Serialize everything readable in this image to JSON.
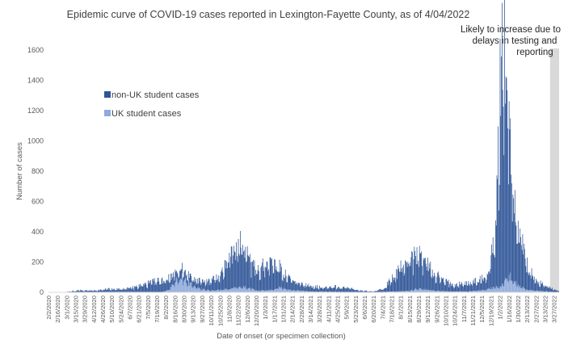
{
  "chart_data": {
    "type": "bar",
    "stacked": true,
    "title": "Epidemic curve of COVID-19 cases reported in Lexington-Fayette County, as of 4/04/2022",
    "xlabel": "Date of onset (or specimen collection)",
    "ylabel": "Number of cases",
    "ylim": [
      0,
      1600
    ],
    "yticks": [
      0,
      200,
      400,
      600,
      800,
      1000,
      1200,
      1400,
      1600
    ],
    "grid": false,
    "legend_position": "upper-left",
    "annotation": [
      "Likely to increase due to",
      "delays in testing and",
      "reporting"
    ],
    "x_start": "2/2/2020",
    "x_end": "4/3/2022",
    "x_step_days": 1,
    "x_tick_labels": [
      "2/2/2020",
      "2/16/2020",
      "3/1/2020",
      "3/15/2020",
      "3/29/2020",
      "4/12/2020",
      "4/26/2020",
      "5/10/2020",
      "5/24/2020",
      "6/7/2020",
      "6/21/2020",
      "7/5/2020",
      "7/19/2020",
      "8/2/2020",
      "8/16/2020",
      "8/30/2020",
      "9/13/2020",
      "9/27/2020",
      "10/11/2020",
      "10/25/2020",
      "11/8/2020",
      "11/22/2020",
      "12/6/2020",
      "12/20/2020",
      "1/3/2021",
      "1/17/2021",
      "1/31/2021",
      "2/14/2021",
      "2/28/2021",
      "3/14/2021",
      "3/28/2021",
      "4/11/2021",
      "4/25/2021",
      "5/9/2021",
      "5/23/2021",
      "6/6/2021",
      "6/20/2021",
      "7/4/2021",
      "7/18/2021",
      "8/1/2021",
      "8/15/2021",
      "8/29/2021",
      "9/12/2021",
      "9/26/2021",
      "10/10/2021",
      "10/24/2021",
      "11/7/2021",
      "11/21/2021",
      "12/5/2021",
      "12/19/2021",
      "1/2/2022",
      "1/16/2022",
      "1/30/2022",
      "2/13/2022",
      "2/27/2022",
      "3/13/2022",
      "3/27/2022"
    ],
    "shaded_region": {
      "from": "3/21/2022",
      "to": "4/3/2022"
    },
    "series": [
      {
        "name": "non-UK student cases",
        "color": "#2F5597",
        "key_points": [
          [
            "2/2/2020",
            0
          ],
          [
            "3/1/2020",
            3
          ],
          [
            "3/20/2020",
            12
          ],
          [
            "4/15/2020",
            10
          ],
          [
            "5/5/2020",
            22
          ],
          [
            "5/15/2020",
            18
          ],
          [
            "6/10/2020",
            28
          ],
          [
            "7/5/2020",
            55
          ],
          [
            "7/20/2020",
            70
          ],
          [
            "8/5/2020",
            75
          ],
          [
            "8/25/2020",
            50
          ],
          [
            "9/15/2020",
            45
          ],
          [
            "10/10/2020",
            60
          ],
          [
            "10/25/2020",
            95
          ],
          [
            "11/8/2020",
            190
          ],
          [
            "11/20/2020",
            260
          ],
          [
            "11/27/2020",
            300
          ],
          [
            "12/5/2020",
            240
          ],
          [
            "12/15/2020",
            140
          ],
          [
            "12/25/2020",
            140
          ],
          [
            "1/5/2021",
            165
          ],
          [
            "1/15/2021",
            170
          ],
          [
            "1/30/2021",
            100
          ],
          [
            "2/15/2021",
            55
          ],
          [
            "3/1/2021",
            40
          ],
          [
            "4/1/2021",
            28
          ],
          [
            "4/20/2021",
            32
          ],
          [
            "5/10/2021",
            25
          ],
          [
            "6/1/2021",
            10
          ],
          [
            "6/20/2021",
            4
          ],
          [
            "7/5/2021",
            20
          ],
          [
            "7/20/2021",
            85
          ],
          [
            "8/5/2021",
            170
          ],
          [
            "8/20/2021",
            210
          ],
          [
            "9/5/2021",
            190
          ],
          [
            "9/20/2021",
            120
          ],
          [
            "10/5/2021",
            65
          ],
          [
            "10/25/2021",
            45
          ],
          [
            "11/15/2021",
            52
          ],
          [
            "12/1/2021",
            65
          ],
          [
            "12/15/2021",
            95
          ],
          [
            "12/25/2021",
            330
          ],
          [
            "12/30/2021",
            830
          ],
          [
            "1/3/2022",
            1270
          ],
          [
            "1/8/2022",
            1290
          ],
          [
            "1/13/2022",
            1300
          ],
          [
            "1/18/2022",
            900
          ],
          [
            "1/25/2022",
            500
          ],
          [
            "2/5/2022",
            260
          ],
          [
            "2/15/2022",
            120
          ],
          [
            "3/1/2022",
            55
          ],
          [
            "3/15/2022",
            35
          ],
          [
            "3/25/2022",
            22
          ],
          [
            "4/3/2022",
            8
          ]
        ]
      },
      {
        "name": "UK student cases",
        "color": "#8FAADC",
        "key_points": [
          [
            "2/2/2020",
            0
          ],
          [
            "7/25/2020",
            0
          ],
          [
            "8/5/2020",
            12
          ],
          [
            "8/12/2020",
            45
          ],
          [
            "8/20/2020",
            85
          ],
          [
            "8/27/2020",
            90
          ],
          [
            "9/5/2020",
            60
          ],
          [
            "9/20/2020",
            25
          ],
          [
            "10/10/2020",
            10
          ],
          [
            "11/5/2020",
            20
          ],
          [
            "11/20/2020",
            35
          ],
          [
            "12/5/2020",
            30
          ],
          [
            "12/20/2020",
            10
          ],
          [
            "1/10/2021",
            15
          ],
          [
            "1/25/2021",
            30
          ],
          [
            "2/10/2021",
            15
          ],
          [
            "3/15/2021",
            5
          ],
          [
            "4/30/2021",
            3
          ],
          [
            "6/1/2021",
            0
          ],
          [
            "8/15/2021",
            8
          ],
          [
            "8/25/2021",
            22
          ],
          [
            "9/5/2021",
            20
          ],
          [
            "9/25/2021",
            10
          ],
          [
            "10/20/2021",
            5
          ],
          [
            "11/15/2021",
            6
          ],
          [
            "12/10/2021",
            15
          ],
          [
            "12/25/2021",
            30
          ],
          [
            "1/5/2022",
            40
          ],
          [
            "1/10/2022",
            80
          ],
          [
            "1/14/2022",
            110
          ],
          [
            "1/20/2022",
            85
          ],
          [
            "1/30/2022",
            40
          ],
          [
            "2/15/2022",
            15
          ],
          [
            "3/15/2022",
            5
          ],
          [
            "4/3/2022",
            0
          ]
        ]
      }
    ]
  }
}
